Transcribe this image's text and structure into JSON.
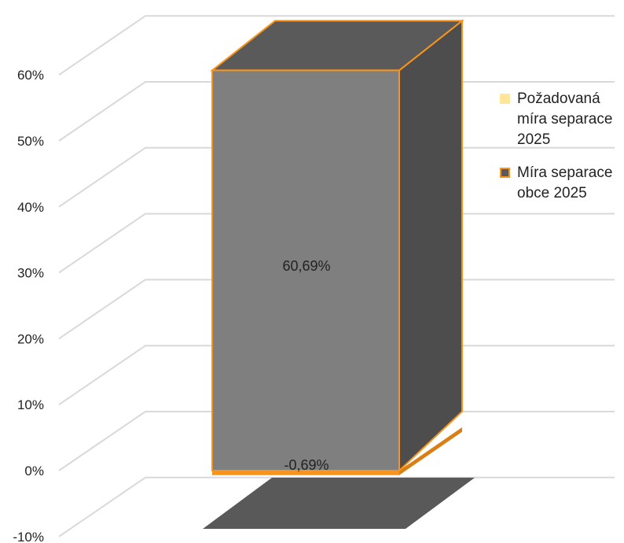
{
  "chart_data": {
    "type": "bar",
    "three_d": true,
    "stacked": true,
    "categories": [
      ""
    ],
    "series": [
      {
        "name": "Požadovaná míra separace 2025",
        "values": [
          -0.69
        ],
        "label": "-0,69%",
        "color": "#ffe699"
      },
      {
        "name": "Míra separace obce 2025",
        "values": [
          60.69
        ],
        "label": "60,69%",
        "color": "#7f7f7f",
        "border": "#f7941d"
      }
    ],
    "ylim": [
      -10,
      60
    ],
    "yticks": [
      "-10%",
      "0%",
      "10%",
      "20%",
      "30%",
      "40%",
      "50%",
      "60%"
    ],
    "grid": true,
    "legend_position": "right",
    "colors": {
      "bar_front": "#7f7f7f",
      "bar_side": "#4d4d4d",
      "bar_top": "#5a5a5a",
      "border": "#f7941d",
      "floor": "#595959",
      "grid": "#d9d9d9"
    }
  },
  "legend": {
    "items": [
      {
        "label": "Požadovaná míra separace 2025"
      },
      {
        "label": "Míra separace obce 2025"
      }
    ]
  }
}
